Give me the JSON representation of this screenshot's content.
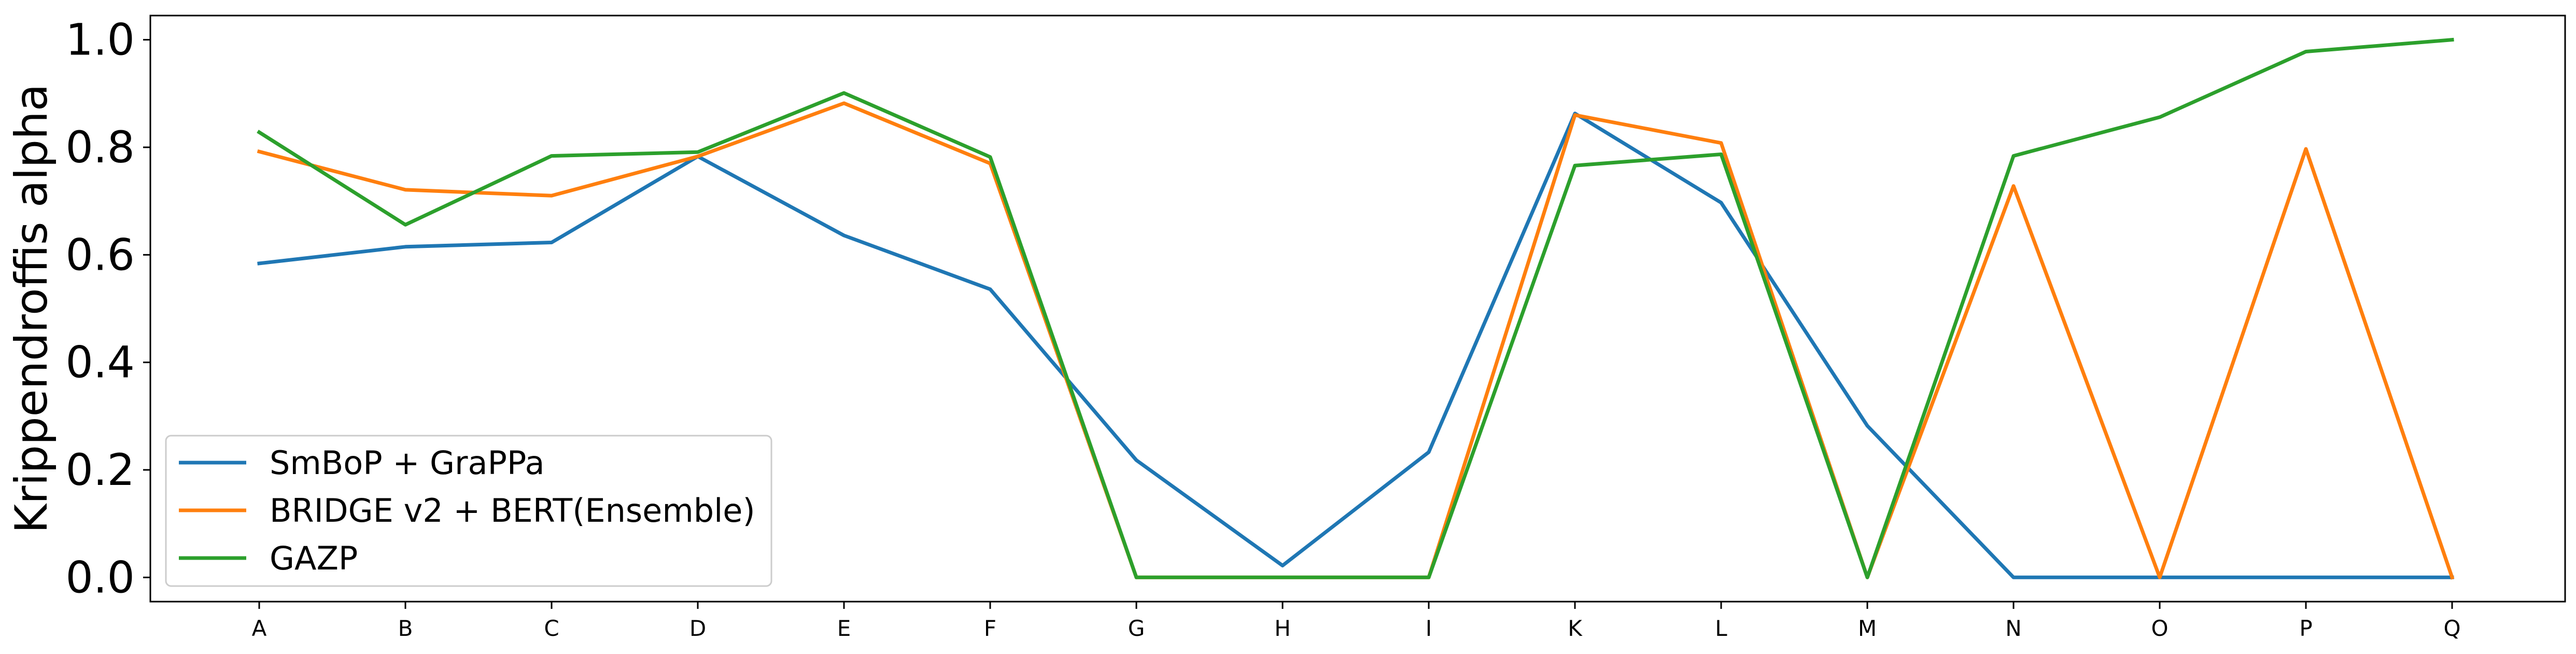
{
  "chart_data": {
    "type": "line",
    "title": "",
    "xlabel": "",
    "ylabel": "Krippendroffis alpha",
    "categories": [
      "A",
      "B",
      "C",
      "D",
      "E",
      "F",
      "G",
      "H",
      "I",
      "K",
      "L",
      "M",
      "N",
      "O",
      "P",
      "Q"
    ],
    "ylim": [
      -0.045,
      1.045
    ],
    "yticks": [
      "0.0",
      "0.2",
      "0.4",
      "0.6",
      "0.8",
      "1.0"
    ],
    "ytick_values": [
      0.0,
      0.2,
      0.4,
      0.6,
      0.8,
      1.0
    ],
    "grid": false,
    "legend_position": "lower-left",
    "series": [
      {
        "name": "SmBoP + GraPPa",
        "color": "#1f77b4",
        "values": [
          0.584,
          0.615,
          0.623,
          0.783,
          0.636,
          0.536,
          0.218,
          0.022,
          0.233,
          0.863,
          0.697,
          0.282,
          0.0,
          0.0,
          0.0,
          0.0
        ]
      },
      {
        "name": "BRIDGE v2 + BERT(Ensemble)",
        "color": "#ff7f0e",
        "values": [
          0.792,
          0.721,
          0.71,
          0.783,
          0.882,
          0.77,
          0.0,
          0.0,
          0.0,
          0.86,
          0.808,
          0.0,
          0.728,
          0.0,
          0.797,
          0.0
        ]
      },
      {
        "name": "GAZP",
        "color": "#2ca02c",
        "values": [
          0.828,
          0.656,
          0.784,
          0.791,
          0.901,
          0.782,
          0.0,
          0.0,
          0.0,
          0.766,
          0.787,
          0.0,
          0.784,
          0.856,
          0.978,
          1.0
        ]
      }
    ]
  }
}
